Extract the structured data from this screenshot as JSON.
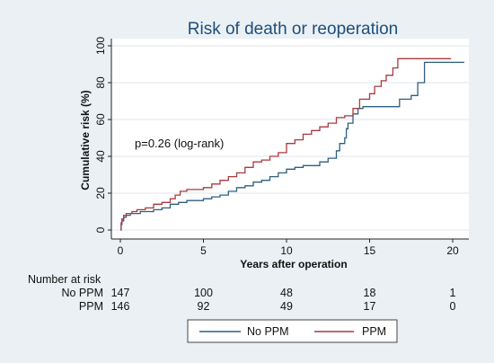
{
  "chart_data": {
    "type": "line",
    "title": "Risk of death or reoperation",
    "xlabel": "Years after operation",
    "ylabel": "Cumulative risk (%)",
    "xlim": [
      0,
      21
    ],
    "ylim": [
      0,
      100
    ],
    "xticks": [
      0,
      5,
      10,
      15,
      20
    ],
    "yticks": [
      0,
      20,
      40,
      60,
      80,
      100
    ],
    "grid": "horizontal",
    "annotation": "p=0.26 (log-rank)",
    "series": [
      {
        "name": "No PPM",
        "color": "#2f5f7f",
        "points": [
          [
            0,
            0
          ],
          [
            0.05,
            3
          ],
          [
            0.1,
            5
          ],
          [
            0.2,
            7
          ],
          [
            0.35,
            8
          ],
          [
            0.6,
            9
          ],
          [
            1.0,
            9
          ],
          [
            1.2,
            10
          ],
          [
            2.0,
            11
          ],
          [
            2.5,
            12
          ],
          [
            3.0,
            14
          ],
          [
            3.5,
            15
          ],
          [
            4.0,
            16
          ],
          [
            4.5,
            16
          ],
          [
            5.0,
            17
          ],
          [
            5.5,
            18
          ],
          [
            6.0,
            19
          ],
          [
            6.5,
            21
          ],
          [
            7.0,
            23
          ],
          [
            7.5,
            24
          ],
          [
            8.0,
            26
          ],
          [
            8.5,
            27
          ],
          [
            9.0,
            29
          ],
          [
            9.5,
            31
          ],
          [
            10.0,
            33
          ],
          [
            10.5,
            34
          ],
          [
            11.0,
            35
          ],
          [
            11.5,
            35
          ],
          [
            12.0,
            37
          ],
          [
            12.5,
            39
          ],
          [
            13.0,
            43
          ],
          [
            13.2,
            47
          ],
          [
            13.5,
            50
          ],
          [
            13.6,
            55
          ],
          [
            13.7,
            58
          ],
          [
            14.0,
            63
          ],
          [
            14.3,
            66
          ],
          [
            14.6,
            67
          ],
          [
            15.5,
            67
          ],
          [
            16.4,
            67
          ],
          [
            16.8,
            71
          ],
          [
            17.5,
            73
          ],
          [
            17.9,
            80
          ],
          [
            18.3,
            91
          ],
          [
            20.7,
            91
          ]
        ]
      },
      {
        "name": "PPM",
        "color": "#a83a3f",
        "points": [
          [
            0,
            0
          ],
          [
            0.05,
            4
          ],
          [
            0.1,
            6
          ],
          [
            0.2,
            8
          ],
          [
            0.35,
            9
          ],
          [
            0.7,
            10
          ],
          [
            1.0,
            11
          ],
          [
            1.5,
            12
          ],
          [
            2.0,
            14
          ],
          [
            2.5,
            15
          ],
          [
            3.0,
            17
          ],
          [
            3.3,
            19
          ],
          [
            3.6,
            21
          ],
          [
            4.0,
            22
          ],
          [
            4.5,
            22
          ],
          [
            5.0,
            23
          ],
          [
            5.5,
            25
          ],
          [
            6.0,
            27
          ],
          [
            6.5,
            29
          ],
          [
            7.0,
            31
          ],
          [
            7.5,
            34
          ],
          [
            8.0,
            37
          ],
          [
            8.5,
            38
          ],
          [
            9.0,
            40
          ],
          [
            9.5,
            42
          ],
          [
            10.0,
            47
          ],
          [
            10.5,
            49
          ],
          [
            11.0,
            52
          ],
          [
            11.5,
            54
          ],
          [
            12.0,
            56
          ],
          [
            12.5,
            58
          ],
          [
            13.0,
            61
          ],
          [
            13.5,
            62
          ],
          [
            13.9,
            62
          ],
          [
            14.0,
            66
          ],
          [
            14.4,
            71
          ],
          [
            14.8,
            71
          ],
          [
            15.0,
            74
          ],
          [
            15.3,
            78
          ],
          [
            15.7,
            81
          ],
          [
            16.0,
            84
          ],
          [
            16.4,
            88
          ],
          [
            16.7,
            93
          ],
          [
            19.9,
            93
          ]
        ]
      }
    ],
    "risk_table": {
      "header": "Number at risk",
      "times": [
        0,
        5,
        10,
        15,
        20
      ],
      "rows": [
        {
          "label": "No PPM",
          "values": [
            147,
            100,
            48,
            18,
            1
          ]
        },
        {
          "label": "PPM",
          "values": [
            146,
            92,
            49,
            17,
            0
          ]
        }
      ]
    },
    "legend": {
      "placement": "bottom",
      "labels": [
        "No PPM",
        "PPM"
      ]
    }
  }
}
